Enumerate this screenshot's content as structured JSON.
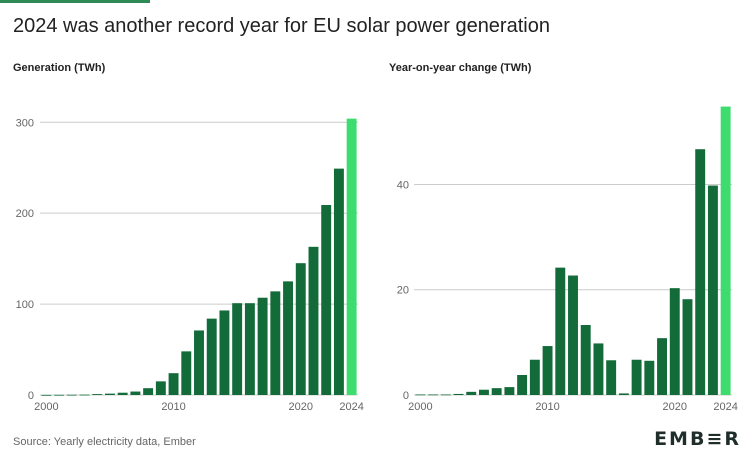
{
  "title": "2024 was another record year for EU solar power generation",
  "footer": {
    "source": "Source: Yearly electricity data, Ember",
    "logo": "EMB≡R"
  },
  "colors": {
    "bar": "#146b3a",
    "highlight": "#3ddc6f",
    "grid": "#cccccc",
    "text": "#222222"
  },
  "chart_data": [
    {
      "type": "bar",
      "title": "Generation (TWh)",
      "x": [
        2000,
        2001,
        2002,
        2003,
        2004,
        2005,
        2006,
        2007,
        2008,
        2009,
        2010,
        2011,
        2012,
        2013,
        2014,
        2015,
        2016,
        2017,
        2018,
        2019,
        2020,
        2021,
        2022,
        2023,
        2024
      ],
      "values": [
        0.1,
        0.2,
        0.3,
        0.4,
        1,
        1.5,
        2.5,
        3.8,
        7.5,
        15,
        24,
        48,
        71,
        84,
        93,
        101,
        101,
        107,
        114,
        125,
        145,
        163,
        209,
        249,
        304
      ],
      "x_ticks": [
        "2000",
        "2010",
        "2020",
        "2024"
      ],
      "y_ticks": [
        0,
        100,
        200,
        300
      ],
      "ylim": [
        0,
        330
      ],
      "highlight_x": 2024,
      "grid": true
    },
    {
      "type": "bar",
      "title": "Year-on-year change (TWh)",
      "x": [
        2000,
        2001,
        2002,
        2003,
        2004,
        2005,
        2006,
        2007,
        2008,
        2009,
        2010,
        2011,
        2012,
        2013,
        2014,
        2015,
        2016,
        2017,
        2018,
        2019,
        2020,
        2021,
        2022,
        2023,
        2024
      ],
      "values": [
        0.1,
        0.1,
        0.1,
        0.2,
        0.6,
        1,
        1.3,
        1.5,
        3.8,
        6.7,
        9.3,
        24.2,
        22.7,
        13.3,
        9.8,
        6.6,
        0.3,
        6.7,
        6.5,
        10.8,
        20.3,
        18.2,
        46.7,
        39.8,
        54.8
      ],
      "x_ticks": [
        "2000",
        "2010",
        "2020",
        "2024"
      ],
      "y_ticks": [
        0,
        20,
        40
      ],
      "ylim": [
        0,
        57
      ],
      "highlight_x": 2024,
      "grid": true
    }
  ]
}
